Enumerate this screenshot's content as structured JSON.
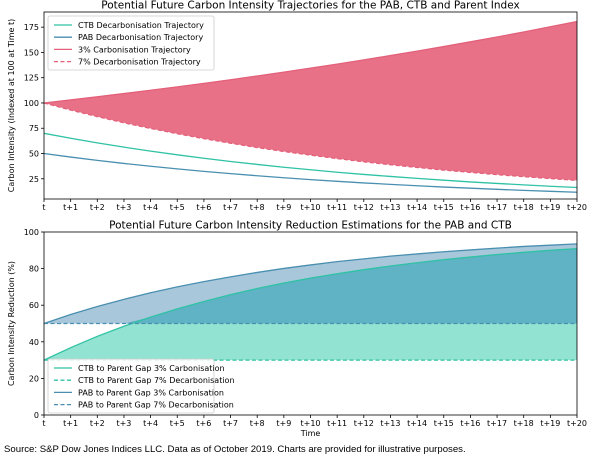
{
  "source_text": "Source: S&P Dow Jones Indices LLC.  Data as of October 2019.  Charts are provided for illustrative purposes.",
  "colors": {
    "carbon_red": "#e3607a",
    "carbon_fill": "#e87188",
    "ctb_teal": "#2fc2a4",
    "ctb_fill": "#7fdec9",
    "pab_blue": "#4a8fb0",
    "pab_fill": "#a3c4d9",
    "overlap_fill": "#5fb3c4"
  },
  "chart_data": [
    {
      "type": "line",
      "title": "Potential Future Carbon Intensity Trajectories for the PAB, CTB and Parent Index",
      "xlabel": "",
      "ylabel": "Carbon Intensity (Indexed at 100 at Time t)",
      "categories": [
        "t",
        "t+1",
        "t+2",
        "t+3",
        "t+4",
        "t+5",
        "t+6",
        "t+7",
        "t+8",
        "t+9",
        "t+10",
        "t+11",
        "t+12",
        "t+13",
        "t+14",
        "t+15",
        "t+16",
        "t+17",
        "t+18",
        "t+19",
        "t+20"
      ],
      "y_ticks": [
        "25",
        "50",
        "75",
        "100",
        "125",
        "150",
        "175"
      ],
      "ylim": [
        5,
        190
      ],
      "legend_position": "top-left",
      "series": [
        {
          "name": "CTB Decarbonisation Trajectory",
          "style": "solid",
          "color": "#2fc2a4",
          "values": [
            70,
            65.1,
            60.5,
            56.3,
            52.4,
            48.7,
            45.3,
            42.1,
            39.2,
            36.4,
            33.9,
            31.5,
            29.3,
            27.3,
            25.4,
            23.6,
            21.9,
            20.4,
            19.0,
            17.6,
            16.4
          ]
        },
        {
          "name": "PAB Decarbonisation Trajectory",
          "style": "solid",
          "color": "#4a8fb0",
          "values": [
            50,
            46.5,
            43.2,
            40.2,
            37.4,
            34.8,
            32.3,
            30.1,
            28.0,
            26.0,
            24.2,
            22.5,
            20.9,
            19.5,
            18.1,
            16.8,
            15.7,
            14.6,
            13.5,
            12.6,
            11.7
          ]
        },
        {
          "name": "3% Carbonisation Trajectory",
          "style": "solid",
          "color": "#e3607a",
          "values": [
            100,
            103,
            106.1,
            109.3,
            112.6,
            115.9,
            119.4,
            123.0,
            126.7,
            130.5,
            134.4,
            138.4,
            142.6,
            146.9,
            151.3,
            155.8,
            160.5,
            165.3,
            170.2,
            175.4,
            180.6
          ]
        },
        {
          "name": "7% Decarbonisation Trajectory",
          "style": "dashed",
          "color": "#e3607a",
          "values": [
            100,
            93,
            86.5,
            80.4,
            74.8,
            69.6,
            64.7,
            60.2,
            55.9,
            52.0,
            48.4,
            45.0,
            41.8,
            38.9,
            36.2,
            33.6,
            31.3,
            29.1,
            27.1,
            25.2,
            23.4
          ]
        }
      ]
    },
    {
      "type": "area",
      "title": "Potential Future Carbon Intensity Reduction Estimations for the PAB and CTB",
      "xlabel": "Time",
      "ylabel": "Carbon Intensity Reduction (%)",
      "categories": [
        "t",
        "t+1",
        "t+2",
        "t+3",
        "t+4",
        "t+5",
        "t+6",
        "t+7",
        "t+8",
        "t+9",
        "t+10",
        "t+11",
        "t+12",
        "t+13",
        "t+14",
        "t+15",
        "t+16",
        "t+17",
        "t+18",
        "t+19",
        "t+20"
      ],
      "y_ticks": [
        "0",
        "20",
        "40",
        "60",
        "80",
        "100"
      ],
      "ylim": [
        0,
        100
      ],
      "legend_position": "lower-left",
      "series": [
        {
          "name": "CTB to Parent Gap 3% Carbonisation",
          "style": "solid",
          "color": "#2fc2a4",
          "values": [
            30,
            36.8,
            43.0,
            48.5,
            53.5,
            58.0,
            62.0,
            65.8,
            69.1,
            72.1,
            74.8,
            77.2,
            79.4,
            81.4,
            83.2,
            84.9,
            86.3,
            87.7,
            88.9,
            90.0,
            90.9
          ]
        },
        {
          "name": "CTB to Parent Gap 7% Decarbonisation",
          "style": "dashed",
          "color": "#2fc2a4",
          "values": [
            30,
            30,
            30,
            30,
            30,
            30,
            30,
            30,
            30,
            30,
            30,
            30,
            30,
            30,
            30,
            30,
            30,
            30,
            30,
            30,
            30
          ]
        },
        {
          "name": "PAB to Parent Gap 3% Carbonisation",
          "style": "solid",
          "color": "#4a8fb0",
          "values": [
            50,
            54.9,
            59.3,
            63.2,
            66.8,
            70.0,
            72.9,
            75.5,
            77.9,
            80.1,
            82.0,
            83.8,
            85.3,
            86.8,
            88.0,
            89.2,
            90.2,
            91.2,
            92.1,
            92.8,
            93.5
          ]
        },
        {
          "name": "PAB to Parent Gap 7% Decarbonisation",
          "style": "dashed",
          "color": "#4a8fb0",
          "values": [
            50,
            50,
            50,
            50,
            50,
            50,
            50,
            50,
            50,
            50,
            50,
            50,
            50,
            50,
            50,
            50,
            50,
            50,
            50,
            50,
            50
          ]
        }
      ]
    }
  ]
}
